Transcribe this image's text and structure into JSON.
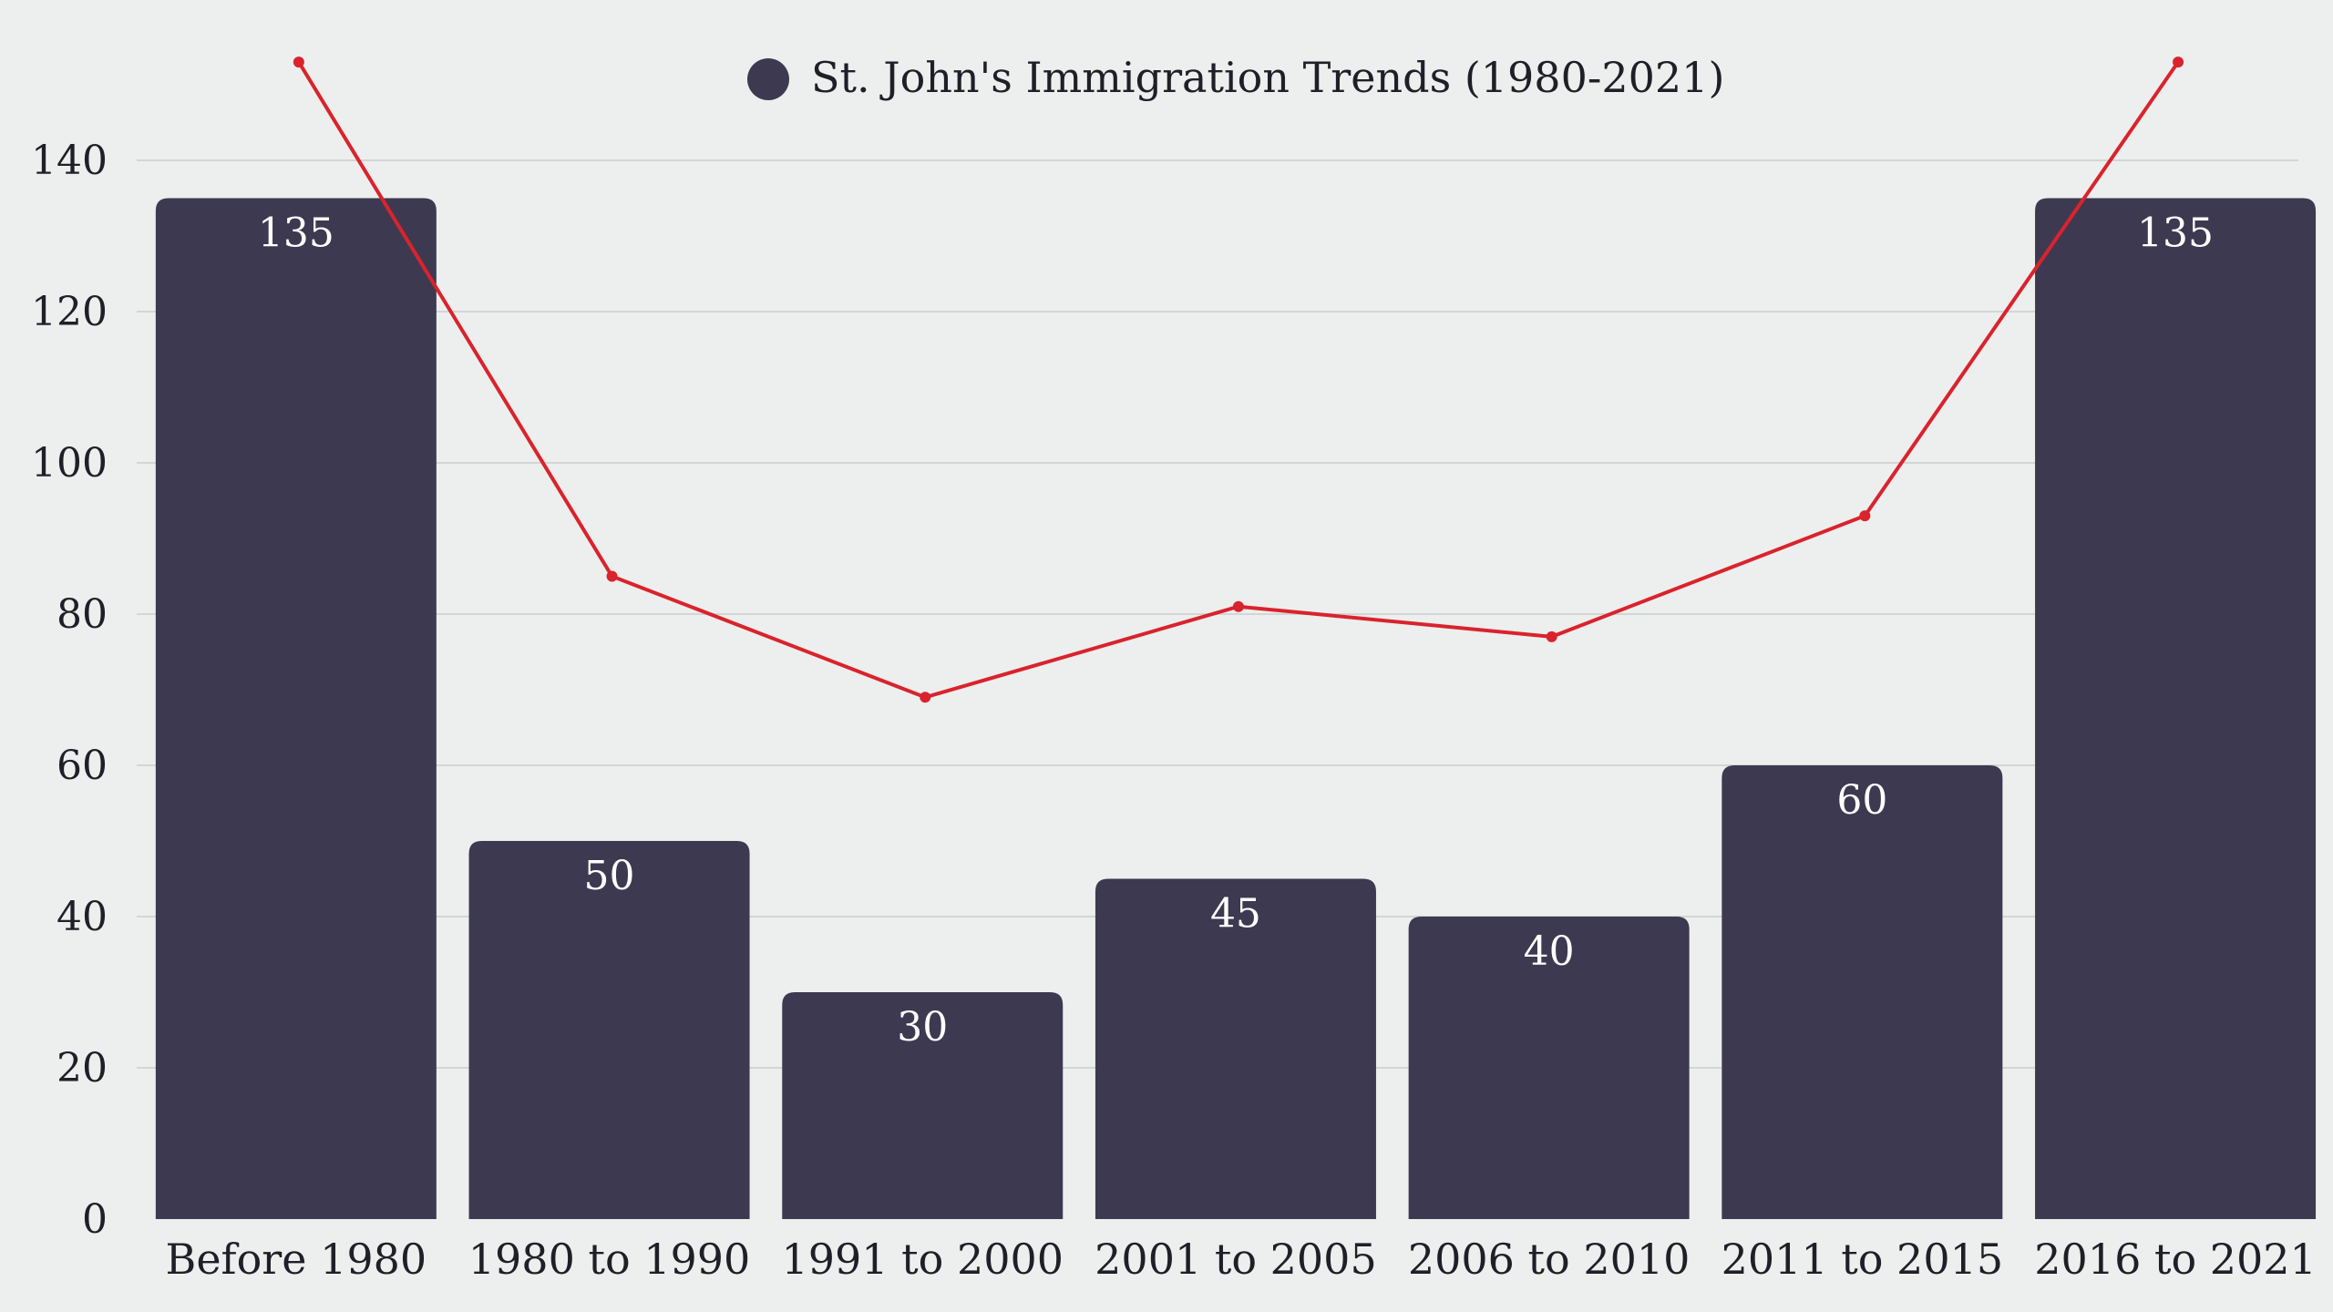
{
  "chart_data": {
    "type": "bar",
    "title": "",
    "xlabel": "",
    "ylabel": "",
    "ylim": [
      0,
      155
    ],
    "yticks": [
      0,
      20,
      40,
      60,
      80,
      100,
      120,
      140
    ],
    "grid": true,
    "legend_position": "top-center",
    "categories": [
      "Before 1980",
      "1980 to 1990",
      "1991 to 2000",
      "2001 to 2005",
      "2006 to 2010",
      "2011 to 2015",
      "2016 to 2021"
    ],
    "series": [
      {
        "name": "St. John's Immigration Trends (1980-2021)",
        "type": "bar",
        "color": "#3d3950",
        "values": [
          135,
          50,
          30,
          45,
          40,
          60,
          135
        ],
        "labels": [
          "135",
          "50",
          "30",
          "45",
          "40",
          "60",
          "135"
        ]
      },
      {
        "type": "line",
        "color": "#d9232d",
        "values": [
          153,
          85,
          69,
          81,
          77,
          93,
          153
        ]
      }
    ]
  }
}
